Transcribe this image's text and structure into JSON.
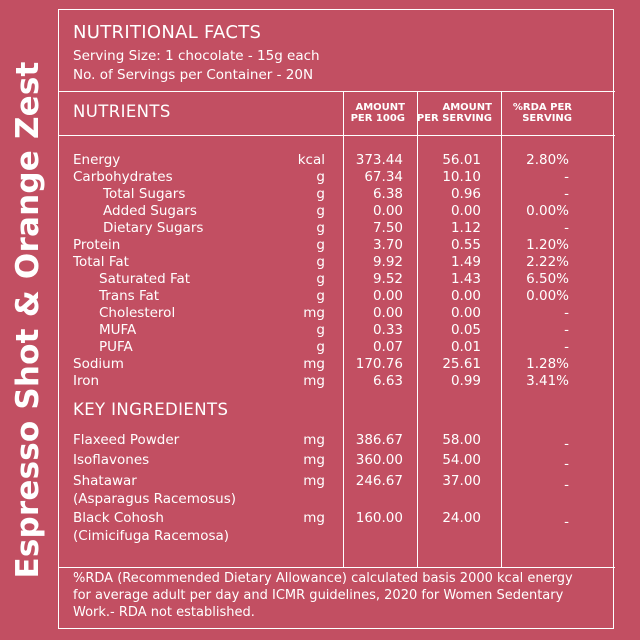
{
  "product_name": "Espresso Shot & Orange Zest",
  "facts_heading": "NUTRITIONAL FACTS",
  "serving_size": "Serving Size: 1 chocolate - 15g each",
  "servings_per_container": "No. of Servings per Container - 20N",
  "nutrients_heading": "NUTRIENTS",
  "columns": {
    "per100": [
      "AMOUNT",
      "PER 100G"
    ],
    "perServing": [
      "AMOUNT",
      "PER SERVING"
    ],
    "rda": [
      "%RDA PER",
      "SERVING"
    ]
  },
  "nutrients": [
    {
      "name": "Energy",
      "unit": "kcal",
      "per100": "373.44",
      "perServing": "56.01",
      "rda": "2.80%"
    },
    {
      "name": "Carbohydrates",
      "unit": "g",
      "per100": "67.34",
      "perServing": "10.10",
      "rda": "-"
    },
    {
      "name": "Total Sugars",
      "unit": "g",
      "per100": "6.38",
      "perServing": "0.96",
      "rda": "-"
    },
    {
      "name": "Added Sugars",
      "unit": "g",
      "per100": "0.00",
      "perServing": "0.00",
      "rda": "0.00%"
    },
    {
      "name": "Dietary Sugars",
      "unit": "g",
      "per100": "7.50",
      "perServing": "1.12",
      "rda": "-"
    },
    {
      "name": "Protein",
      "unit": "g",
      "per100": "3.70",
      "perServing": "0.55",
      "rda": "1.20%"
    },
    {
      "name": "Total Fat",
      "unit": "g",
      "per100": "9.92",
      "perServing": "1.49",
      "rda": "2.22%"
    },
    {
      "name": "Saturated Fat",
      "unit": "g",
      "per100": "9.52",
      "perServing": "1.43",
      "rda": "6.50%"
    },
    {
      "name": "Trans Fat",
      "unit": "g",
      "per100": "0.00",
      "perServing": "0.00",
      "rda": "0.00%"
    },
    {
      "name": "Cholesterol",
      "unit": "mg",
      "per100": "0.00",
      "perServing": "0.00",
      "rda": "-"
    },
    {
      "name": "MUFA",
      "unit": "g",
      "per100": "0.33",
      "perServing": "0.05",
      "rda": "-"
    },
    {
      "name": "PUFA",
      "unit": "g",
      "per100": "0.07",
      "perServing": "0.01",
      "rda": "-"
    },
    {
      "name": "Sodium",
      "unit": "mg",
      "per100": "170.76",
      "perServing": "25.61",
      "rda": "1.28%"
    },
    {
      "name": "Iron",
      "unit": "mg",
      "per100": "6.63",
      "perServing": "0.99",
      "rda": "3.41%"
    }
  ],
  "ingredients_heading": "KEY INGREDIENTS",
  "ingredients": [
    {
      "name": "Flaxeed Powder",
      "sub": "",
      "unit": "mg",
      "per100": "386.67",
      "perServing": "58.00",
      "rda": "-"
    },
    {
      "name": "Isoflavones",
      "sub": "",
      "unit": "mg",
      "per100": "360.00",
      "perServing": "54.00",
      "rda": "-"
    },
    {
      "name": "Shatawar",
      "sub": "(Asparagus Racemosus)",
      "unit": "mg",
      "per100": "246.67",
      "perServing": "37.00",
      "rda": "-"
    },
    {
      "name": "Black Cohosh",
      "sub": "(Cimicifuga Racemosa)",
      "unit": "mg",
      "per100": "160.00",
      "perServing": "24.00",
      "rda": "-"
    }
  ],
  "footnote": "%RDA (Recommended Dietary Allowance) calculated basis 2000 kcal energy for average adult per day and ICMR guidelines, 2020 for Women Sedentary Work.- RDA not established."
}
